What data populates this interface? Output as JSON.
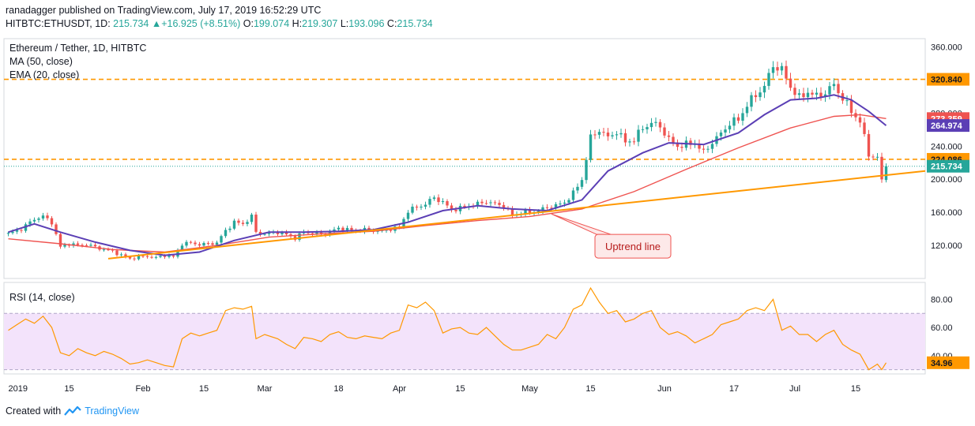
{
  "header": {
    "publisher": "ranadagger",
    "published_text": "published on TradingView.com, July 17, 2019 16:52:29 UTC",
    "symbol": "HITBTC:ETHUSDT, 1D",
    "last": "215.734",
    "change": "+16.925 (+8.51%)",
    "o_label": "O:",
    "o": "199.074",
    "h_label": "H:",
    "h": "219.307",
    "l_label": "L:",
    "l": "193.096",
    "c_label": "C:",
    "c": "215.734"
  },
  "legend": {
    "title": "Ethereum / Tether, 1D, HITBTC",
    "ma": "MA (50, close)",
    "ema": "EMA (20, close)"
  },
  "footer": {
    "created_with": "Created with",
    "brand": "TradingView"
  },
  "colors": {
    "up": "#26a69a",
    "down": "#ef5350",
    "ma": "#ef5350",
    "ema": "#5b3fb5",
    "orange": "#ff9800",
    "rsi": "#ff9800",
    "rsi_band": "#f3e3fb",
    "axis_text": "#131722"
  },
  "chart_data": [
    {
      "type": "candlestick",
      "title": "Ethereum / Tether, 1D, HITBTC",
      "ylim": [
        80,
        370
      ],
      "yticks": [
        120,
        160,
        200,
        240,
        280,
        320,
        360
      ],
      "ytick_labels": [
        "120.000",
        "160.000",
        "200.000",
        "240.000",
        "280.000",
        "320.000",
        "360.000"
      ],
      "x_labels": [
        {
          "label": "2019",
          "day": 0
        },
        {
          "label": "15",
          "day": 14
        },
        {
          "label": "Feb",
          "day": 31
        },
        {
          "label": "15",
          "day": 45
        },
        {
          "label": "Mar",
          "day": 59
        },
        {
          "label": "18",
          "day": 76
        },
        {
          "label": "Apr",
          "day": 90
        },
        {
          "label": "15",
          "day": 104
        },
        {
          "label": "May",
          "day": 120
        },
        {
          "label": "15",
          "day": 134
        },
        {
          "label": "Jun",
          "day": 151
        },
        {
          "label": "17",
          "day": 167
        },
        {
          "label": "Jul",
          "day": 181
        },
        {
          "label": "15",
          "day": 195
        }
      ],
      "x_range_days": [
        -1,
        211
      ],
      "close_path": [
        [
          0,
          134
        ],
        [
          3,
          140
        ],
        [
          6,
          152
        ],
        [
          8,
          155
        ],
        [
          10,
          148
        ],
        [
          12,
          118
        ],
        [
          14,
          122
        ],
        [
          16,
          120
        ],
        [
          18,
          121
        ],
        [
          20,
          118
        ],
        [
          22,
          115
        ],
        [
          24,
          113
        ],
        [
          26,
          108
        ],
        [
          28,
          104
        ],
        [
          30,
          106
        ],
        [
          32,
          107
        ],
        [
          34,
          105
        ],
        [
          36,
          108
        ],
        [
          38,
          106
        ],
        [
          40,
          122
        ],
        [
          42,
          123
        ],
        [
          44,
          121
        ],
        [
          46,
          122
        ],
        [
          48,
          123
        ],
        [
          50,
          138
        ],
        [
          52,
          148
        ],
        [
          54,
          146
        ],
        [
          56,
          155
        ],
        [
          57,
          136
        ],
        [
          59,
          134
        ],
        [
          62,
          136
        ],
        [
          64,
          133
        ],
        [
          66,
          129
        ],
        [
          68,
          136
        ],
        [
          70,
          135
        ],
        [
          72,
          133
        ],
        [
          74,
          136
        ],
        [
          76,
          141
        ],
        [
          78,
          139
        ],
        [
          80,
          138
        ],
        [
          82,
          139
        ],
        [
          84,
          138
        ],
        [
          86,
          137
        ],
        [
          88,
          140
        ],
        [
          90,
          142
        ],
        [
          92,
          162
        ],
        [
          94,
          166
        ],
        [
          96,
          170
        ],
        [
          98,
          178
        ],
        [
          100,
          172
        ],
        [
          102,
          163
        ],
        [
          104,
          165
        ],
        [
          106,
          168
        ],
        [
          108,
          170
        ],
        [
          110,
          173
        ],
        [
          112,
          170
        ],
        [
          114,
          168
        ],
        [
          116,
          156
        ],
        [
          118,
          160
        ],
        [
          120,
          160
        ],
        [
          122,
          162
        ],
        [
          124,
          166
        ],
        [
          126,
          168
        ],
        [
          128,
          172
        ],
        [
          130,
          183
        ],
        [
          132,
          200
        ],
        [
          134,
          250
        ],
        [
          136,
          260
        ],
        [
          138,
          250
        ],
        [
          140,
          258
        ],
        [
          142,
          245
        ],
        [
          144,
          248
        ],
        [
          146,
          262
        ],
        [
          148,
          268
        ],
        [
          150,
          264
        ],
        [
          152,
          248
        ],
        [
          154,
          240
        ],
        [
          156,
          242
        ],
        [
          158,
          244
        ],
        [
          160,
          232
        ],
        [
          162,
          245
        ],
        [
          164,
          255
        ],
        [
          166,
          268
        ],
        [
          168,
          272
        ],
        [
          170,
          290
        ],
        [
          172,
          302
        ],
        [
          174,
          312
        ],
        [
          176,
          338
        ],
        [
          178,
          332
        ],
        [
          180,
          312
        ],
        [
          182,
          298
        ],
        [
          184,
          306
        ],
        [
          186,
          300
        ],
        [
          188,
          305
        ],
        [
          190,
          314
        ],
        [
          192,
          298
        ],
        [
          194,
          282
        ],
        [
          196,
          270
        ],
        [
          198,
          230
        ],
        [
          200,
          226
        ],
        [
          201,
          198
        ],
        [
          202,
          215.734
        ]
      ],
      "ma50_path": [
        [
          0,
          128
        ],
        [
          12,
          122
        ],
        [
          24,
          115
        ],
        [
          36,
          112
        ],
        [
          48,
          120
        ],
        [
          60,
          130
        ],
        [
          72,
          134
        ],
        [
          84,
          137
        ],
        [
          96,
          144
        ],
        [
          108,
          150
        ],
        [
          120,
          155
        ],
        [
          132,
          164
        ],
        [
          144,
          185
        ],
        [
          156,
          212
        ],
        [
          168,
          238
        ],
        [
          180,
          262
        ],
        [
          190,
          276
        ],
        [
          196,
          278
        ],
        [
          202,
          273.359
        ]
      ],
      "ema20_path": [
        [
          0,
          136
        ],
        [
          6,
          146
        ],
        [
          12,
          136
        ],
        [
          20,
          124
        ],
        [
          28,
          114
        ],
        [
          36,
          108
        ],
        [
          44,
          112
        ],
        [
          52,
          126
        ],
        [
          60,
          136
        ],
        [
          68,
          136
        ],
        [
          76,
          137
        ],
        [
          84,
          139
        ],
        [
          92,
          148
        ],
        [
          100,
          162
        ],
        [
          108,
          168
        ],
        [
          116,
          164
        ],
        [
          124,
          162
        ],
        [
          132,
          175
        ],
        [
          138,
          210
        ],
        [
          146,
          232
        ],
        [
          152,
          244
        ],
        [
          160,
          242
        ],
        [
          168,
          256
        ],
        [
          174,
          278
        ],
        [
          180,
          296
        ],
        [
          186,
          298
        ],
        [
          190,
          302
        ],
        [
          194,
          296
        ],
        [
          198,
          282
        ],
        [
          202,
          264.974
        ]
      ],
      "levels": [
        {
          "price": 320.84,
          "label": "320.840"
        },
        {
          "price": 224.086,
          "label": "224.086"
        }
      ],
      "uptrend_line": [
        [
          23,
          104
        ],
        [
          211,
          210
        ]
      ],
      "annotation": {
        "text": "Uptrend line",
        "day": 139,
        "price": 120
      },
      "price_tags": [
        {
          "price": 273.359,
          "label": "273.359",
          "color": "#ef5350"
        },
        {
          "price": 264.974,
          "label": "264.974",
          "color": "#5b3fb5"
        },
        {
          "price": 215.734,
          "label": "215.734",
          "color": "#26a69a"
        }
      ]
    },
    {
      "type": "line",
      "title": "RSI (14, close)",
      "ylim": [
        27,
        92
      ],
      "yticks": [
        40,
        60,
        80
      ],
      "ytick_labels": [
        "40.00",
        "60.00",
        "80.00"
      ],
      "band": [
        30,
        70
      ],
      "last_label": "34.96",
      "series": [
        {
          "values": [
            [
              0,
              58
            ],
            [
              2,
              62
            ],
            [
              4,
              66
            ],
            [
              6,
              63
            ],
            [
              8,
              68
            ],
            [
              10,
              60
            ],
            [
              12,
              42
            ],
            [
              14,
              40
            ],
            [
              16,
              45
            ],
            [
              18,
              42
            ],
            [
              20,
              40
            ],
            [
              22,
              43
            ],
            [
              24,
              41
            ],
            [
              26,
              38
            ],
            [
              28,
              34
            ],
            [
              30,
              35
            ],
            [
              32,
              37
            ],
            [
              34,
              35
            ],
            [
              36,
              33
            ],
            [
              38,
              32
            ],
            [
              40,
              52
            ],
            [
              42,
              56
            ],
            [
              44,
              54
            ],
            [
              46,
              56
            ],
            [
              48,
              58
            ],
            [
              50,
              72
            ],
            [
              52,
              74
            ],
            [
              54,
              73
            ],
            [
              56,
              75
            ],
            [
              57,
              52
            ],
            [
              59,
              55
            ],
            [
              62,
              52
            ],
            [
              64,
              48
            ],
            [
              66,
              45
            ],
            [
              68,
              53
            ],
            [
              70,
              52
            ],
            [
              72,
              50
            ],
            [
              74,
              55
            ],
            [
              76,
              57
            ],
            [
              78,
              53
            ],
            [
              80,
              52
            ],
            [
              82,
              54
            ],
            [
              84,
              53
            ],
            [
              86,
              52
            ],
            [
              88,
              56
            ],
            [
              90,
              58
            ],
            [
              92,
              76
            ],
            [
              94,
              74
            ],
            [
              96,
              78
            ],
            [
              98,
              72
            ],
            [
              100,
              56
            ],
            [
              102,
              59
            ],
            [
              104,
              60
            ],
            [
              106,
              56
            ],
            [
              108,
              55
            ],
            [
              110,
              60
            ],
            [
              112,
              54
            ],
            [
              114,
              48
            ],
            [
              116,
              44
            ],
            [
              118,
              44
            ],
            [
              120,
              46
            ],
            [
              122,
              48
            ],
            [
              124,
              55
            ],
            [
              126,
              52
            ],
            [
              128,
              60
            ],
            [
              130,
              73
            ],
            [
              132,
              76
            ],
            [
              134,
              88
            ],
            [
              136,
              78
            ],
            [
              138,
              70
            ],
            [
              140,
              72
            ],
            [
              142,
              64
            ],
            [
              144,
              66
            ],
            [
              146,
              70
            ],
            [
              148,
              72
            ],
            [
              150,
              60
            ],
            [
              152,
              55
            ],
            [
              154,
              57
            ],
            [
              156,
              54
            ],
            [
              158,
              49
            ],
            [
              160,
              52
            ],
            [
              162,
              55
            ],
            [
              164,
              62
            ],
            [
              166,
              64
            ],
            [
              168,
              66
            ],
            [
              170,
              72
            ],
            [
              172,
              74
            ],
            [
              174,
              72
            ],
            [
              176,
              80
            ],
            [
              178,
              58
            ],
            [
              180,
              61
            ],
            [
              182,
              55
            ],
            [
              184,
              55
            ],
            [
              186,
              50
            ],
            [
              188,
              55
            ],
            [
              190,
              58
            ],
            [
              192,
              48
            ],
            [
              194,
              44
            ],
            [
              196,
              41
            ],
            [
              198,
              30
            ],
            [
              200,
              34
            ],
            [
              201,
              30
            ],
            [
              202,
              34.96
            ]
          ]
        }
      ]
    }
  ]
}
